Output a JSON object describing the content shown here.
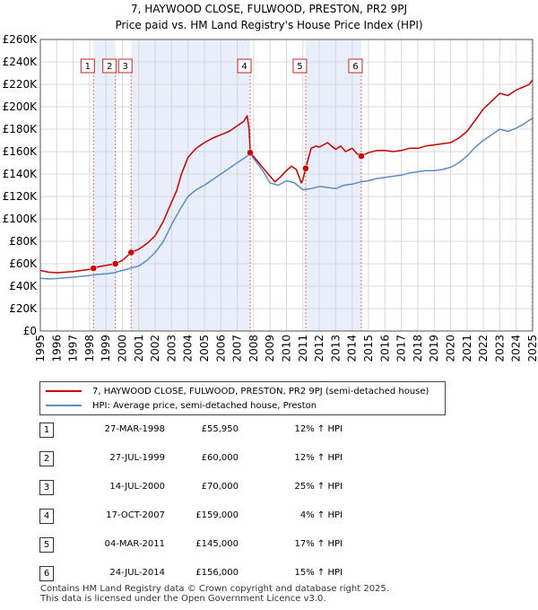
{
  "title_line1": "7, HAYWOOD CLOSE, FULWOOD, PRESTON, PR2 9PJ",
  "title_line2": "Price paid vs. HM Land Registry's House Price Index (HPI)",
  "colors": {
    "price": "#cc0000",
    "hpi": "#5b8ec8",
    "shade": "#e8eefa",
    "grid": "#d8d8d8",
    "marker_line": "#e07070"
  },
  "legend": {
    "price_label": "7, HAYWOOD CLOSE, FULWOOD, PRESTON, PR2 9PJ (semi-detached house)",
    "hpi_label": "HPI: Average price, semi-detached house, Preston"
  },
  "sales": [
    {
      "num": "1",
      "date": "27-MAR-1998",
      "price": "£55,950",
      "pct": "12% ↑ HPI"
    },
    {
      "num": "2",
      "date": "27-JUL-1999",
      "price": "£60,000",
      "pct": "12% ↑ HPI"
    },
    {
      "num": "3",
      "date": "14-JUL-2000",
      "price": "£70,000",
      "pct": "25% ↑ HPI"
    },
    {
      "num": "4",
      "date": "17-OCT-2007",
      "price": "£159,000",
      "pct": "4% ↑ HPI"
    },
    {
      "num": "5",
      "date": "04-MAR-2011",
      "price": "£145,000",
      "pct": "17% ↑ HPI"
    },
    {
      "num": "6",
      "date": "24-JUL-2014",
      "price": "£156,000",
      "pct": "15% ↑ HPI"
    }
  ],
  "footer_line1": "Contains HM Land Registry data © Crown copyright and database right 2025.",
  "footer_line2": "This data is licensed under the Open Government Licence v3.0.",
  "chart_data": {
    "type": "line",
    "title": "Price paid vs. HM Land Registry's House Price Index (HPI)",
    "xlabel": "",
    "ylabel": "",
    "xlim": [
      1995,
      2025
    ],
    "ylim": [
      0,
      260000
    ],
    "y_ticks": [
      0,
      20000,
      40000,
      60000,
      80000,
      100000,
      120000,
      140000,
      160000,
      180000,
      200000,
      220000,
      240000,
      260000
    ],
    "y_tick_labels": [
      "£0",
      "£20K",
      "£40K",
      "£60K",
      "£80K",
      "£100K",
      "£120K",
      "£140K",
      "£160K",
      "£180K",
      "£200K",
      "£220K",
      "£240K",
      "£260K"
    ],
    "x_ticks": [
      1995,
      1996,
      1997,
      1998,
      1999,
      2000,
      2001,
      2002,
      2003,
      2004,
      2005,
      2006,
      2007,
      2008,
      2009,
      2010,
      2011,
      2012,
      2013,
      2014,
      2015,
      2016,
      2017,
      2018,
      2019,
      2020,
      2021,
      2022,
      2023,
      2024,
      2025
    ],
    "x_tick_labels": [
      "1995",
      "1996",
      "1997",
      "1998",
      "1999",
      "2000",
      "2001",
      "2002",
      "2003",
      "2004",
      "2005",
      "2006",
      "2007",
      "2008",
      "2009",
      "2010",
      "2011",
      "2012",
      "2013",
      "2014",
      "2015",
      "2016",
      "2017",
      "2018",
      "2019",
      "2020",
      "2021",
      "2022",
      "2023",
      "2024",
      "2025"
    ],
    "grid": true,
    "shaded_ranges": [
      [
        1998.24,
        1999.57
      ],
      [
        2000.53,
        2007.79
      ],
      [
        2011.17,
        2014.56
      ]
    ],
    "sale_markers": [
      {
        "label": "1",
        "x": 1998.24,
        "y": 55950
      },
      {
        "label": "2",
        "x": 1999.57,
        "y": 60000
      },
      {
        "label": "3",
        "x": 2000.53,
        "y": 70000
      },
      {
        "label": "4",
        "x": 2007.79,
        "y": 159000
      },
      {
        "label": "5",
        "x": 2011.17,
        "y": 145000
      },
      {
        "label": "6",
        "x": 2014.56,
        "y": 156000
      }
    ],
    "series": [
      {
        "name": "7, HAYWOOD CLOSE, FULWOOD, PRESTON, PR2 9PJ (semi-detached house)",
        "color": "#cc0000",
        "x": [
          1995,
          1995.5,
          1996,
          1996.5,
          1997,
          1997.5,
          1998.0,
          1998.24,
          1998.6,
          1999.0,
          1999.57,
          2000.0,
          2000.53,
          2001.0,
          2001.5,
          2002.0,
          2002.5,
          2003.0,
          2003.3,
          2003.6,
          2004.0,
          2004.5,
          2005.0,
          2005.5,
          2006.0,
          2006.5,
          2007.0,
          2007.4,
          2007.6,
          2007.72,
          2007.79,
          2008.2,
          2008.6,
          2009.0,
          2009.3,
          2009.6,
          2010.0,
          2010.3,
          2010.6,
          2010.9,
          2011.0,
          2011.17,
          2011.5,
          2011.8,
          2012.0,
          2012.5,
          2013.0,
          2013.3,
          2013.6,
          2014.0,
          2014.3,
          2014.56,
          2015.0,
          2015.5,
          2016.0,
          2016.5,
          2017.0,
          2017.5,
          2018.0,
          2018.5,
          2019.0,
          2019.5,
          2020.0,
          2020.5,
          2021.0,
          2021.5,
          2022.0,
          2022.5,
          2023.0,
          2023.5,
          2024.0,
          2024.5,
          2024.8,
          2025.0
        ],
        "values": [
          54000,
          52500,
          52000,
          52500,
          53000,
          54000,
          55000,
          55950,
          57500,
          58500,
          60000,
          63000,
          70000,
          73000,
          78000,
          85000,
          98000,
          115000,
          125000,
          140000,
          155000,
          163000,
          168000,
          172000,
          175000,
          178000,
          183000,
          187000,
          192000,
          180000,
          159000,
          152000,
          145000,
          138000,
          133000,
          137000,
          143000,
          147000,
          144000,
          132000,
          135000,
          145000,
          163000,
          165000,
          164000,
          168000,
          162000,
          165000,
          160000,
          163000,
          158000,
          156000,
          159000,
          161000,
          161000,
          160000,
          161000,
          163000,
          163000,
          165000,
          166000,
          167000,
          168000,
          172000,
          178000,
          188000,
          198000,
          205000,
          212000,
          210000,
          215000,
          218000,
          220000,
          224000
        ]
      },
      {
        "name": "HPI: Average price, semi-detached house, Preston",
        "color": "#5b8ec8",
        "x": [
          1995,
          1995.5,
          1996,
          1996.5,
          1997,
          1997.5,
          1998.0,
          1998.5,
          1999.0,
          1999.5,
          2000.0,
          2000.5,
          2001.0,
          2001.5,
          2002.0,
          2002.5,
          2003.0,
          2003.5,
          2004.0,
          2004.5,
          2005.0,
          2005.5,
          2006.0,
          2006.5,
          2007.0,
          2007.5,
          2007.79,
          2008.2,
          2008.6,
          2009.0,
          2009.5,
          2010.0,
          2010.5,
          2011.0,
          2011.5,
          2012.0,
          2012.5,
          2013.0,
          2013.5,
          2014.0,
          2014.5,
          2015.0,
          2015.5,
          2016.0,
          2016.5,
          2017.0,
          2017.5,
          2018.0,
          2018.5,
          2019.0,
          2019.5,
          2020.0,
          2020.5,
          2021.0,
          2021.5,
          2022.0,
          2022.5,
          2023.0,
          2023.5,
          2024.0,
          2024.5,
          2025.0
        ],
        "values": [
          47000,
          46500,
          46800,
          47500,
          48000,
          48800,
          49500,
          50500,
          51000,
          52000,
          54000,
          56000,
          58000,
          63000,
          70000,
          80000,
          95000,
          108000,
          120000,
          126000,
          130000,
          135000,
          140000,
          145000,
          150000,
          155000,
          158000,
          150000,
          142000,
          132000,
          130000,
          134000,
          132000,
          126000,
          127000,
          129000,
          128000,
          127000,
          130000,
          131000,
          133000,
          134000,
          136000,
          137000,
          138000,
          139000,
          141000,
          142000,
          143000,
          143000,
          144000,
          146000,
          150000,
          156000,
          164000,
          170000,
          175000,
          180000,
          178000,
          181000,
          185000,
          190000
        ]
      }
    ]
  }
}
